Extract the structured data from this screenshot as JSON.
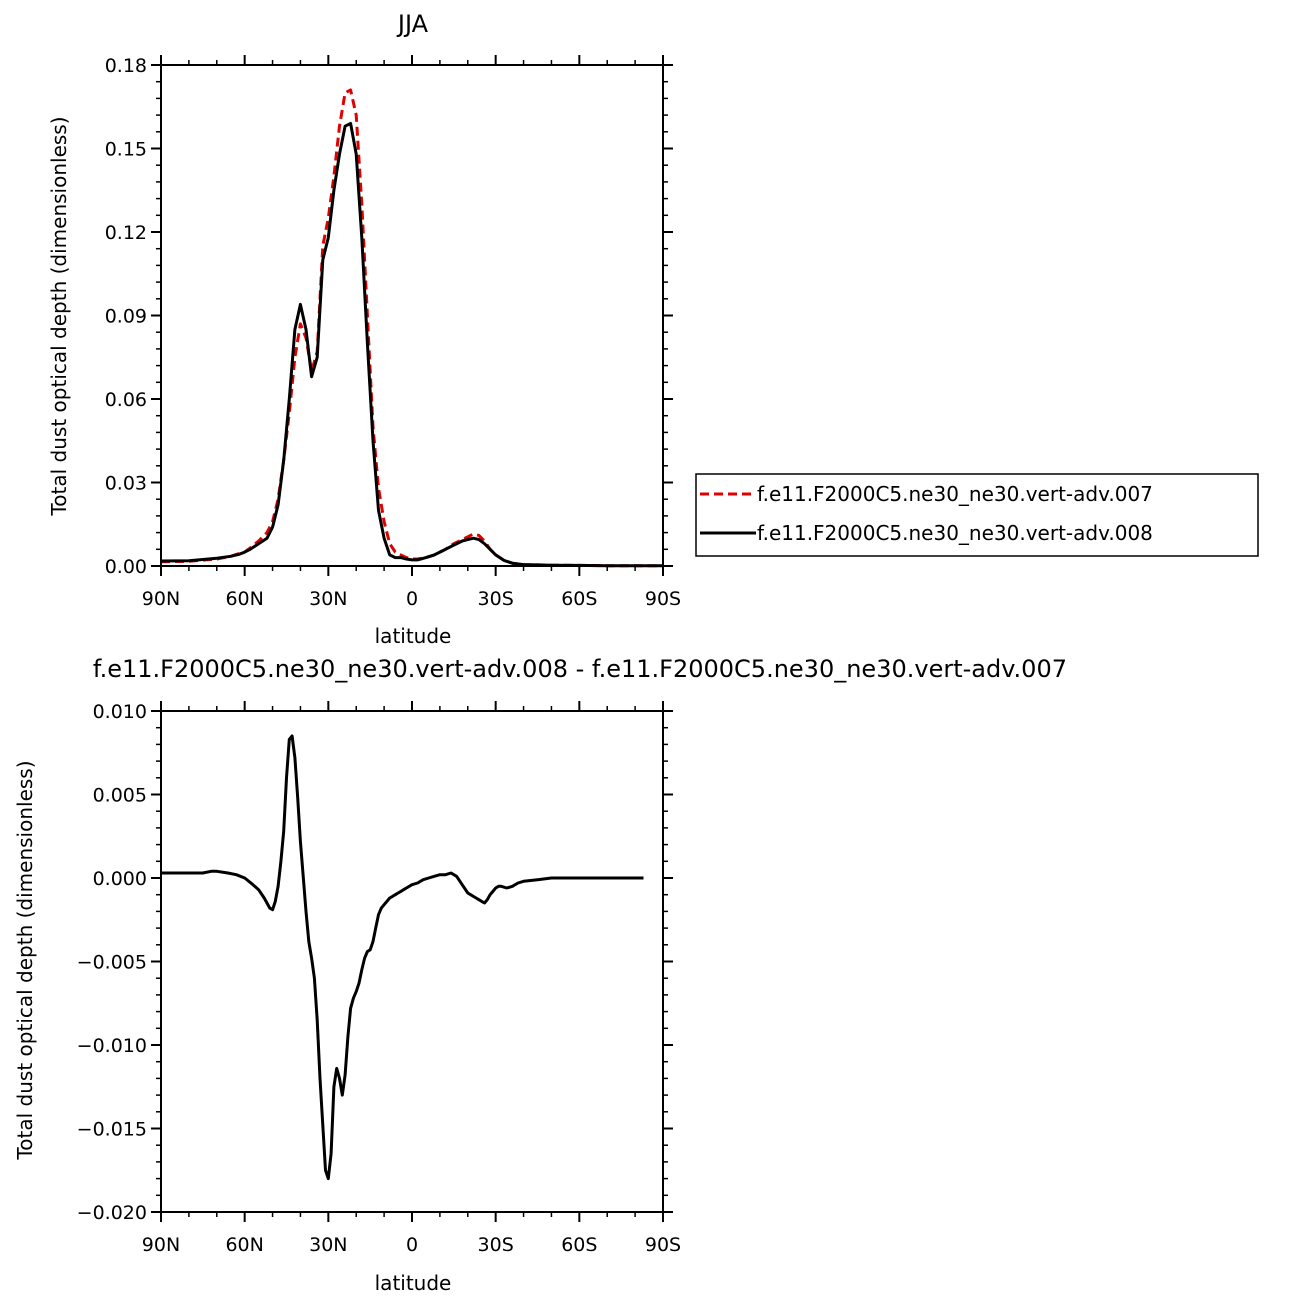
{
  "chart_data": [
    {
      "type": "line",
      "title": "JJA",
      "xlabel": "latitude",
      "ylabel": "Total dust optical depth (dimensionless)",
      "xlim": [
        90,
        -90
      ],
      "ylim": [
        0,
        0.18
      ],
      "xticks": [
        90,
        60,
        30,
        0,
        -30,
        -60,
        -90
      ],
      "xtick_labels": [
        "90N",
        "60N",
        "30N",
        "0",
        "30S",
        "60S",
        "90S"
      ],
      "yticks": [
        0,
        0.03,
        0.06,
        0.09,
        0.12,
        0.15,
        0.18
      ],
      "ytick_labels": [
        "0.00",
        "0.03",
        "0.06",
        "0.09",
        "0.12",
        "0.15",
        "0.18"
      ],
      "grid": false,
      "legend_position": "right",
      "series": [
        {
          "name": "f.e11.F2000C5.ne30_ne30.vert-adv.007",
          "color": "#e00000",
          "dash": "dashed",
          "x": [
            90,
            80,
            70,
            65,
            62,
            60,
            58,
            55,
            52,
            50,
            48,
            46,
            44,
            42,
            40,
            38,
            36,
            34,
            32,
            30,
            28,
            26,
            24,
            22,
            20,
            18,
            16,
            14,
            12,
            10,
            8,
            6,
            4,
            2,
            0,
            -2,
            -5,
            -8,
            -10,
            -12,
            -15,
            -18,
            -20,
            -22,
            -24,
            -26,
            -28,
            -30,
            -33,
            -36,
            -40,
            -45,
            -50,
            -60,
            -70,
            -80,
            -90
          ],
          "y": [
            0.0015,
            0.0017,
            0.0025,
            0.0035,
            0.0045,
            0.005,
            0.0065,
            0.009,
            0.012,
            0.016,
            0.024,
            0.038,
            0.055,
            0.075,
            0.087,
            0.082,
            0.07,
            0.077,
            0.115,
            0.125,
            0.14,
            0.158,
            0.17,
            0.171,
            0.162,
            0.13,
            0.09,
            0.05,
            0.028,
            0.016,
            0.008,
            0.005,
            0.004,
            0.003,
            0.0025,
            0.0025,
            0.003,
            0.004,
            0.005,
            0.006,
            0.008,
            0.0095,
            0.0105,
            0.0115,
            0.011,
            0.009,
            0.006,
            0.004,
            0.002,
            0.001,
            0.0005,
            0.0004,
            0.0003,
            0.0002,
            0.0001,
            0.0001,
            0.0001
          ]
        },
        {
          "name": "f.e11.F2000C5.ne30_ne30.vert-adv.008",
          "color": "#000000",
          "dash": "solid",
          "x": [
            90,
            80,
            70,
            65,
            62,
            60,
            58,
            55,
            52,
            50,
            48,
            46,
            44,
            42,
            40,
            38,
            36,
            34,
            32,
            30,
            28,
            26,
            24,
            22,
            20,
            18,
            16,
            14,
            12,
            10,
            8,
            6,
            4,
            2,
            0,
            -2,
            -5,
            -8,
            -10,
            -12,
            -15,
            -18,
            -20,
            -22,
            -24,
            -26,
            -28,
            -30,
            -33,
            -36,
            -40,
            -45,
            -50,
            -60,
            -70,
            -80,
            -90
          ],
          "y": [
            0.0018,
            0.0019,
            0.0028,
            0.0035,
            0.0042,
            0.005,
            0.006,
            0.008,
            0.01,
            0.014,
            0.022,
            0.038,
            0.06,
            0.085,
            0.094,
            0.085,
            0.068,
            0.075,
            0.11,
            0.118,
            0.135,
            0.148,
            0.158,
            0.159,
            0.148,
            0.118,
            0.08,
            0.045,
            0.02,
            0.01,
            0.004,
            0.003,
            0.003,
            0.0025,
            0.0022,
            0.0022,
            0.003,
            0.004,
            0.005,
            0.006,
            0.0075,
            0.009,
            0.0095,
            0.01,
            0.0095,
            0.008,
            0.006,
            0.004,
            0.002,
            0.001,
            0.0005,
            0.0004,
            0.0003,
            0.0002,
            0.0001,
            0.0001,
            0.0001
          ]
        }
      ]
    },
    {
      "type": "line",
      "title": "f.e11.F2000C5.ne30_ne30.vert-adv.008 - f.e11.F2000C5.ne30_ne30.vert-adv.007",
      "xlabel": "latitude",
      "ylabel": "Total dust optical depth (dimensionless)",
      "xlim": [
        90,
        -90
      ],
      "ylim": [
        -0.02,
        0.01
      ],
      "xticks": [
        90,
        60,
        30,
        0,
        -30,
        -60,
        -90
      ],
      "xtick_labels": [
        "90N",
        "60N",
        "30N",
        "0",
        "30S",
        "60S",
        "90S"
      ],
      "yticks": [
        -0.02,
        -0.015,
        -0.01,
        -0.005,
        0,
        0.005,
        0.01
      ],
      "ytick_labels": [
        "−0.020",
        "−0.015",
        "−0.010",
        "−0.005",
        "0.000",
        "0.005",
        "0.010"
      ],
      "grid": false,
      "series": [
        {
          "color": "#000000",
          "dash": "solid",
          "x": [
            90,
            85,
            80,
            75,
            72,
            70,
            66,
            63,
            60,
            57,
            55,
            53,
            51,
            50,
            49,
            48,
            47,
            46,
            45,
            44,
            43,
            42,
            41,
            40,
            39,
            38,
            37,
            36,
            35,
            34,
            33,
            32,
            31,
            30,
            29,
            28,
            27,
            26,
            25,
            24,
            23,
            22,
            21,
            20,
            19,
            18,
            17,
            16,
            15,
            14,
            13,
            12,
            11,
            10,
            9,
            8,
            7,
            6,
            5,
            4,
            3,
            2,
            0,
            -2,
            -4,
            -6,
            -8,
            -10,
            -12,
            -14,
            -16,
            -18,
            -20,
            -21,
            -22,
            -23,
            -24,
            -25,
            -26,
            -27,
            -28,
            -29,
            -30,
            -31,
            -32,
            -34,
            -36,
            -38,
            -40,
            -45,
            -50,
            -55,
            -60,
            -65,
            -70,
            -75,
            -80,
            -83
          ],
          "y": [
            0.0003,
            0.0003,
            0.0003,
            0.0003,
            0.0004,
            0.0004,
            0.0003,
            0.0002,
            0.0,
            -0.0004,
            -0.0007,
            -0.0012,
            -0.0018,
            -0.0019,
            -0.0014,
            -0.0005,
            0.001,
            0.0028,
            0.006,
            0.0083,
            0.0085,
            0.0072,
            0.0048,
            0.0022,
            0.0001,
            -0.002,
            -0.0038,
            -0.0048,
            -0.006,
            -0.0085,
            -0.012,
            -0.0148,
            -0.0175,
            -0.018,
            -0.0165,
            -0.0125,
            -0.0114,
            -0.012,
            -0.013,
            -0.0118,
            -0.0095,
            -0.0078,
            -0.0072,
            -0.0068,
            -0.0063,
            -0.0055,
            -0.0048,
            -0.0044,
            -0.0043,
            -0.0038,
            -0.003,
            -0.0022,
            -0.0018,
            -0.0016,
            -0.0014,
            -0.0012,
            -0.0011,
            -0.001,
            -0.0009,
            -0.0008,
            -0.0007,
            -0.0006,
            -0.0004,
            -0.0003,
            -0.0001,
            0.0,
            0.0001,
            0.0002,
            0.0002,
            0.0003,
            0.0001,
            -0.0004,
            -0.0009,
            -0.001,
            -0.0011,
            -0.0012,
            -0.0013,
            -0.0014,
            -0.0015,
            -0.0013,
            -0.001,
            -0.0008,
            -0.0006,
            -0.0005,
            -0.0005,
            -0.0006,
            -0.0005,
            -0.0003,
            -0.0002,
            -0.0001,
            0.0,
            0.0,
            0.0,
            0.0,
            0.0,
            0.0,
            0.0,
            0.0
          ]
        }
      ]
    }
  ]
}
